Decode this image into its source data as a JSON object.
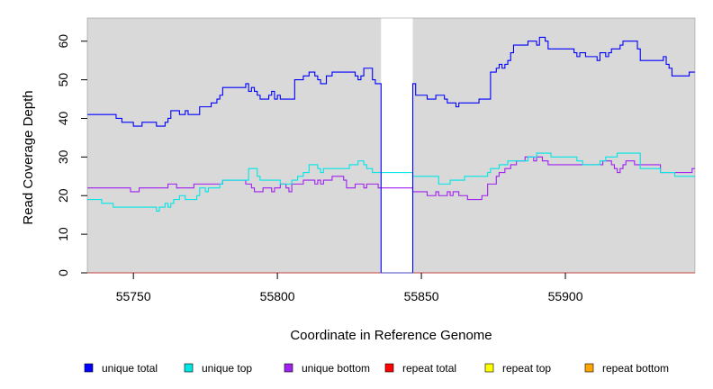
{
  "chart_data": {
    "type": "line",
    "title": "",
    "xlabel": "Coordinate in Reference Genome",
    "ylabel": "Read Coverage Depth",
    "xlim": [
      55734,
      55945
    ],
    "ylim": [
      0,
      66
    ],
    "xticks": [
      55750,
      55800,
      55850,
      55900
    ],
    "yticks": [
      0,
      10,
      20,
      30,
      40,
      50,
      60
    ],
    "background_color": "#d9d9d9",
    "grid": false,
    "legend_position": "bottom",
    "gap": {
      "x_start": 55836,
      "x_end": 55847,
      "color": "#ffffff"
    },
    "series": [
      {
        "name": "unique total",
        "color": "#0000ff",
        "points": [
          [
            55734,
            41
          ],
          [
            55742,
            41
          ],
          [
            55744,
            40
          ],
          [
            55746,
            39
          ],
          [
            55749,
            39
          ],
          [
            55750,
            38
          ],
          [
            55752,
            38
          ],
          [
            55753,
            39
          ],
          [
            55757,
            39
          ],
          [
            55758,
            38
          ],
          [
            55760,
            38
          ],
          [
            55761,
            39
          ],
          [
            55762,
            40
          ],
          [
            55763,
            42
          ],
          [
            55765,
            42
          ],
          [
            55766,
            41
          ],
          [
            55767,
            41
          ],
          [
            55768,
            42
          ],
          [
            55769,
            41
          ],
          [
            55772,
            41
          ],
          [
            55773,
            43
          ],
          [
            55776,
            43
          ],
          [
            55777,
            44
          ],
          [
            55779,
            45
          ],
          [
            55780,
            46
          ],
          [
            55781,
            48
          ],
          [
            55788,
            48
          ],
          [
            55789,
            49
          ],
          [
            55790,
            47
          ],
          [
            55791,
            48
          ],
          [
            55792,
            47
          ],
          [
            55793,
            46
          ],
          [
            55794,
            45
          ],
          [
            55796,
            45
          ],
          [
            55797,
            46
          ],
          [
            55798,
            47
          ],
          [
            55799,
            45
          ],
          [
            55800,
            46
          ],
          [
            55801,
            45
          ],
          [
            55805,
            45
          ],
          [
            55806,
            50
          ],
          [
            55808,
            50
          ],
          [
            55809,
            51
          ],
          [
            55811,
            52
          ],
          [
            55812,
            52
          ],
          [
            55813,
            51
          ],
          [
            55814,
            50
          ],
          [
            55815,
            49
          ],
          [
            55816,
            49
          ],
          [
            55817,
            51
          ],
          [
            55818,
            51
          ],
          [
            55819,
            52
          ],
          [
            55826,
            52
          ],
          [
            55827,
            51
          ],
          [
            55828,
            50
          ],
          [
            55829,
            51
          ],
          [
            55830,
            53
          ],
          [
            55832,
            53
          ],
          [
            55833,
            50
          ],
          [
            55834,
            49
          ],
          [
            55836,
            49
          ],
          [
            55836,
            0
          ],
          [
            55847,
            0
          ],
          [
            55847,
            49
          ],
          [
            55848,
            46
          ],
          [
            55850,
            46
          ],
          [
            55852,
            45
          ],
          [
            55854,
            45
          ],
          [
            55855,
            46
          ],
          [
            55857,
            46
          ],
          [
            55858,
            45
          ],
          [
            55859,
            44
          ],
          [
            55861,
            44
          ],
          [
            55862,
            43
          ],
          [
            55863,
            44
          ],
          [
            55866,
            44
          ],
          [
            55867,
            44
          ],
          [
            55869,
            44
          ],
          [
            55870,
            45
          ],
          [
            55873,
            45
          ],
          [
            55874,
            52
          ],
          [
            55876,
            53
          ],
          [
            55877,
            54
          ],
          [
            55878,
            53
          ],
          [
            55879,
            54
          ],
          [
            55880,
            55
          ],
          [
            55881,
            57
          ],
          [
            55882,
            59
          ],
          [
            55886,
            59
          ],
          [
            55887,
            60
          ],
          [
            55889,
            60
          ],
          [
            55890,
            59
          ],
          [
            55891,
            61
          ],
          [
            55893,
            60
          ],
          [
            55894,
            58
          ],
          [
            55902,
            58
          ],
          [
            55903,
            57
          ],
          [
            55904,
            56
          ],
          [
            55905,
            57
          ],
          [
            55907,
            56
          ],
          [
            55910,
            56
          ],
          [
            55911,
            55
          ],
          [
            55912,
            57
          ],
          [
            55913,
            57
          ],
          [
            55914,
            56
          ],
          [
            55915,
            57
          ],
          [
            55916,
            58
          ],
          [
            55918,
            58
          ],
          [
            55919,
            59
          ],
          [
            55920,
            60
          ],
          [
            55924,
            60
          ],
          [
            55925,
            58
          ],
          [
            55926,
            55
          ],
          [
            55933,
            55
          ],
          [
            55934,
            56
          ],
          [
            55935,
            54
          ],
          [
            55936,
            53
          ],
          [
            55937,
            51
          ],
          [
            55942,
            51
          ],
          [
            55943,
            52
          ],
          [
            55945,
            52
          ]
        ]
      },
      {
        "name": "unique top",
        "color": "#00e5e5",
        "points": [
          [
            55734,
            19
          ],
          [
            55738,
            19
          ],
          [
            55739,
            18
          ],
          [
            55742,
            18
          ],
          [
            55743,
            17
          ],
          [
            55747,
            17
          ],
          [
            55752,
            17
          ],
          [
            55753,
            17
          ],
          [
            55757,
            17
          ],
          [
            55758,
            16
          ],
          [
            55759,
            17
          ],
          [
            55761,
            18
          ],
          [
            55762,
            17
          ],
          [
            55763,
            18
          ],
          [
            55764,
            19
          ],
          [
            55765,
            19
          ],
          [
            55766,
            20
          ],
          [
            55768,
            19
          ],
          [
            55770,
            19
          ],
          [
            55772,
            20
          ],
          [
            55773,
            22
          ],
          [
            55775,
            21
          ],
          [
            55776,
            22
          ],
          [
            55778,
            22
          ],
          [
            55780,
            23
          ],
          [
            55781,
            24
          ],
          [
            55788,
            24
          ],
          [
            55789,
            24
          ],
          [
            55790,
            27
          ],
          [
            55793,
            25
          ],
          [
            55794,
            24
          ],
          [
            55800,
            24
          ],
          [
            55801,
            23
          ],
          [
            55804,
            23
          ],
          [
            55805,
            24
          ],
          [
            55806,
            24
          ],
          [
            55807,
            25
          ],
          [
            55808,
            25
          ],
          [
            55809,
            26
          ],
          [
            55810,
            26
          ],
          [
            55811,
            28
          ],
          [
            55814,
            27
          ],
          [
            55815,
            26
          ],
          [
            55816,
            27
          ],
          [
            55818,
            27
          ],
          [
            55824,
            27
          ],
          [
            55825,
            28
          ],
          [
            55826,
            28
          ],
          [
            55828,
            29
          ],
          [
            55830,
            28
          ],
          [
            55831,
            27
          ],
          [
            55832,
            27
          ],
          [
            55833,
            26
          ],
          [
            55836,
            26
          ],
          [
            55847,
            26
          ],
          [
            55847,
            25
          ],
          [
            55855,
            25
          ],
          [
            55856,
            23
          ],
          [
            55860,
            24
          ],
          [
            55861,
            24
          ],
          [
            55864,
            24
          ],
          [
            55865,
            25
          ],
          [
            55872,
            25
          ],
          [
            55873,
            26
          ],
          [
            55874,
            27
          ],
          [
            55876,
            27
          ],
          [
            55877,
            28
          ],
          [
            55880,
            29
          ],
          [
            55882,
            29
          ],
          [
            55887,
            30
          ],
          [
            55890,
            31
          ],
          [
            55894,
            31
          ],
          [
            55895,
            30
          ],
          [
            55903,
            30
          ],
          [
            55904,
            29
          ],
          [
            55906,
            28
          ],
          [
            55908,
            28
          ],
          [
            55912,
            29
          ],
          [
            55914,
            30
          ],
          [
            55918,
            31
          ],
          [
            55925,
            31
          ],
          [
            55926,
            27
          ],
          [
            55932,
            27
          ],
          [
            55933,
            26
          ],
          [
            55935,
            26
          ],
          [
            55938,
            25
          ],
          [
            55945,
            25
          ]
        ]
      },
      {
        "name": "unique bottom",
        "color": "#a020f0",
        "points": [
          [
            55734,
            22
          ],
          [
            55748,
            22
          ],
          [
            55749,
            21
          ],
          [
            55751,
            21
          ],
          [
            55752,
            22
          ],
          [
            55761,
            22
          ],
          [
            55762,
            23
          ],
          [
            55764,
            23
          ],
          [
            55765,
            22
          ],
          [
            55770,
            22
          ],
          [
            55771,
            23
          ],
          [
            55776,
            23
          ],
          [
            55778,
            23
          ],
          [
            55780,
            23
          ],
          [
            55781,
            24
          ],
          [
            55788,
            24
          ],
          [
            55789,
            23
          ],
          [
            55790,
            23
          ],
          [
            55791,
            22
          ],
          [
            55792,
            21
          ],
          [
            55794,
            21
          ],
          [
            55795,
            22
          ],
          [
            55797,
            22
          ],
          [
            55798,
            21
          ],
          [
            55799,
            22
          ],
          [
            55800,
            22
          ],
          [
            55801,
            23
          ],
          [
            55803,
            22
          ],
          [
            55804,
            21
          ],
          [
            55805,
            23
          ],
          [
            55808,
            23
          ],
          [
            55809,
            24
          ],
          [
            55812,
            24
          ],
          [
            55813,
            23
          ],
          [
            55814,
            24
          ],
          [
            55815,
            23
          ],
          [
            55816,
            24
          ],
          [
            55818,
            24
          ],
          [
            55819,
            25
          ],
          [
            55822,
            25
          ],
          [
            55823,
            24
          ],
          [
            55824,
            22
          ],
          [
            55826,
            22
          ],
          [
            55827,
            23
          ],
          [
            55829,
            23
          ],
          [
            55830,
            22
          ],
          [
            55831,
            23
          ],
          [
            55833,
            23
          ],
          [
            55835,
            22
          ],
          [
            55836,
            22
          ],
          [
            55847,
            22
          ],
          [
            55847,
            21
          ],
          [
            55851,
            21
          ],
          [
            55852,
            20
          ],
          [
            55854,
            20
          ],
          [
            55855,
            21
          ],
          [
            55856,
            20
          ],
          [
            55858,
            20
          ],
          [
            55859,
            21
          ],
          [
            55860,
            20
          ],
          [
            55861,
            21
          ],
          [
            55863,
            20
          ],
          [
            55865,
            20
          ],
          [
            55866,
            19
          ],
          [
            55870,
            19
          ],
          [
            55871,
            20
          ],
          [
            55872,
            20
          ],
          [
            55873,
            23
          ],
          [
            55876,
            25
          ],
          [
            55877,
            26
          ],
          [
            55879,
            27
          ],
          [
            55881,
            28
          ],
          [
            55883,
            29
          ],
          [
            55886,
            30
          ],
          [
            55888,
            30
          ],
          [
            55889,
            29
          ],
          [
            55890,
            30
          ],
          [
            55892,
            29
          ],
          [
            55894,
            28
          ],
          [
            55912,
            28
          ],
          [
            55913,
            29
          ],
          [
            55916,
            28
          ],
          [
            55917,
            27
          ],
          [
            55918,
            26
          ],
          [
            55919,
            27
          ],
          [
            55920,
            28
          ],
          [
            55921,
            29
          ],
          [
            55923,
            29
          ],
          [
            55924,
            28
          ],
          [
            55932,
            28
          ],
          [
            55933,
            26
          ],
          [
            55943,
            26
          ],
          [
            55944,
            27
          ],
          [
            55945,
            27
          ]
        ]
      },
      {
        "name": "repeat total",
        "color": "#ff0000",
        "points": [
          [
            55734,
            0
          ],
          [
            55945,
            0
          ]
        ]
      },
      {
        "name": "repeat top",
        "color": "#ffff00",
        "points": [
          [
            55734,
            0
          ],
          [
            55945,
            0
          ]
        ]
      },
      {
        "name": "repeat bottom",
        "color": "#ffa500",
        "points": [
          [
            55734,
            0
          ],
          [
            55945,
            0
          ]
        ]
      }
    ]
  }
}
